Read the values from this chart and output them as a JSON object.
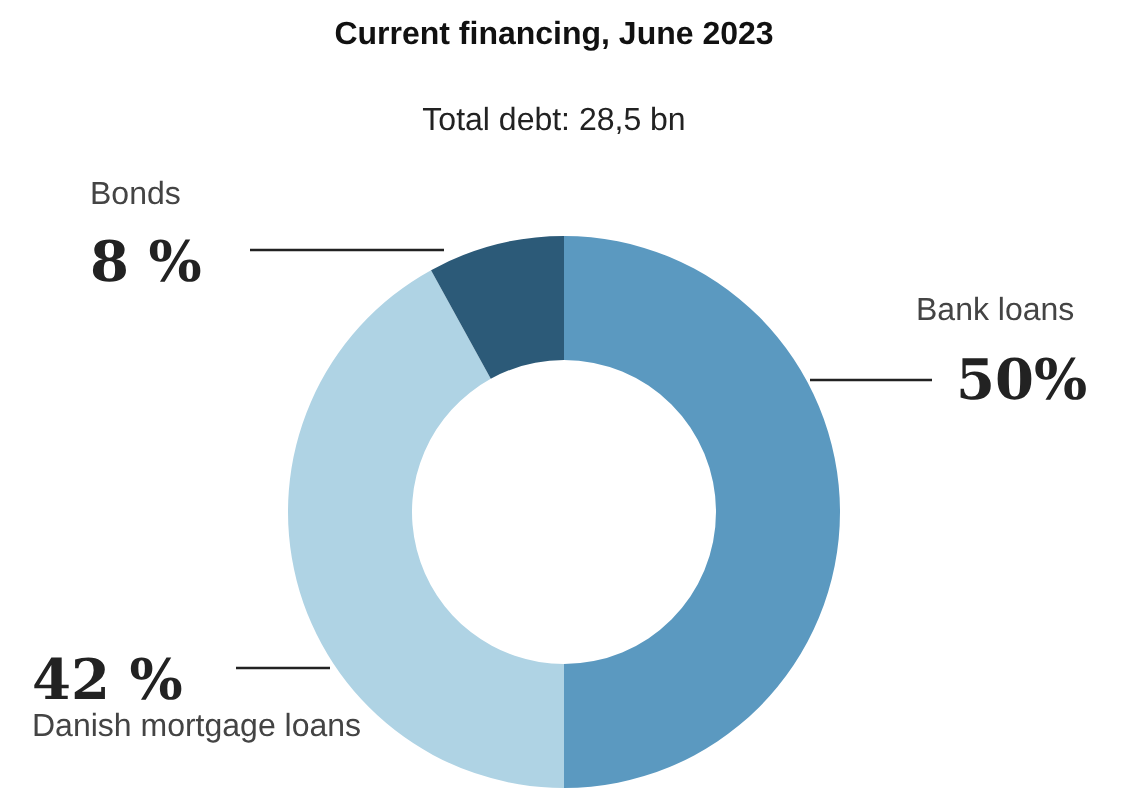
{
  "chart_data": {
    "type": "donut",
    "title": "Current financing, June 2023",
    "subtitle": "Total debt: 28,5 bn",
    "categories": [
      "Bank loans",
      "Danish mortgage loans",
      "Bonds"
    ],
    "values": [
      50,
      42,
      8
    ],
    "colors": [
      "#5b99c0",
      "#afd3e4",
      "#2c5a78"
    ],
    "value_labels": [
      "50%",
      "42 %",
      "8 %"
    ]
  }
}
